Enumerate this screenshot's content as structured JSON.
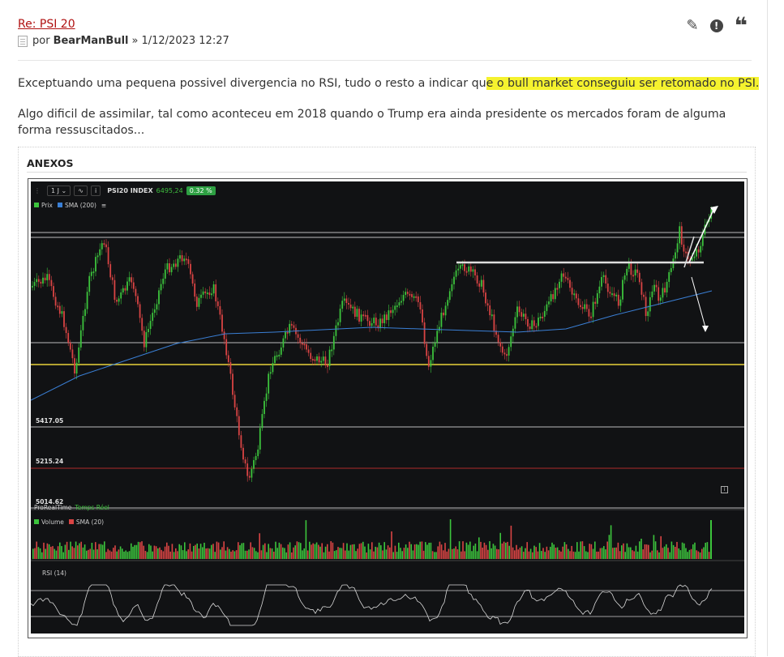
{
  "post": {
    "title": "Re: PSI 20",
    "by_prefix": "por",
    "author": "BearManBull",
    "date_sep": "»",
    "date": "1/12/2023 12:27",
    "icons": {
      "edit": "pencil-icon",
      "report": "exclamation-icon",
      "quote": "quote-icon"
    }
  },
  "body": {
    "p1_before": "Exceptuando uma pequena possivel divergencia no RSI, tudo o resto a indicar qu",
    "p1_highlight": "e o bull market conseguiu ser retomado no PSI.",
    "p2": "Algo dificil de assimilar, tal como aconteceu em 2018 quando o Trump era ainda presidente os mercados foram de alguma forma ressuscitados..."
  },
  "attachments": {
    "title": "ANEXOS",
    "chart": {
      "timeframe": "1 J",
      "symbol": "PSI20 INDEX",
      "price": "6495,24",
      "change": "0.32 %",
      "legend_price": "Prix",
      "legend_sma": "SMA (200)",
      "levels": [
        "5417.05",
        "5215.24",
        "5014.62"
      ],
      "brand": "ProRealTime",
      "realtime": "Temps Réel",
      "volume_label": "Volume",
      "volume_sma_label": "SMA (20)",
      "rsi_label": "RSI (14)",
      "colors": {
        "up": "#3cc43c",
        "down": "#d94444",
        "sma": "#3a7fd5",
        "support": "#e8d23a",
        "level_red": "#b02a2a",
        "bg": "#111214"
      }
    }
  }
}
